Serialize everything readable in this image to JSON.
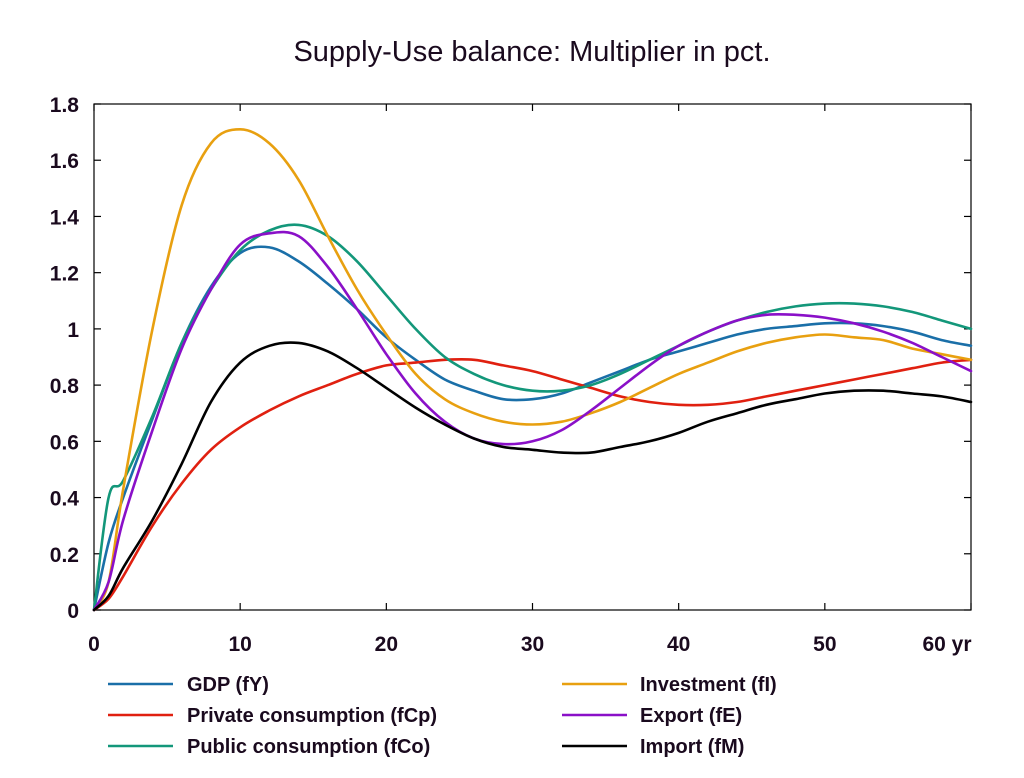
{
  "chart_data": {
    "type": "line",
    "title": "Supply-Use balance: Multiplier in pct.",
    "xlabel": "",
    "ylabel": "",
    "x_unit_label": "yr",
    "xlim": [
      0,
      60
    ],
    "ylim": [
      0,
      1.8
    ],
    "x_ticks": [
      0,
      10,
      20,
      30,
      40,
      50,
      60
    ],
    "x_tick_labels": [
      "0",
      "10",
      "20",
      "30",
      "40",
      "50",
      "60 yr"
    ],
    "y_ticks": [
      0,
      0.2,
      0.4,
      0.6,
      0.8,
      1,
      1.2,
      1.4,
      1.6,
      1.8
    ],
    "y_tick_labels": [
      "0",
      "0.2",
      "0.4",
      "0.6",
      "0.8",
      "1",
      "1.2",
      "1.4",
      "1.6",
      "1.8"
    ],
    "grid": false,
    "legend_position": "bottom",
    "x": [
      0,
      1,
      2,
      4,
      6,
      8,
      10,
      12,
      14,
      16,
      18,
      20,
      22,
      24,
      26,
      28,
      30,
      32,
      34,
      36,
      38,
      40,
      42,
      44,
      46,
      48,
      50,
      52,
      54,
      56,
      58,
      60
    ],
    "series": [
      {
        "name": "GDP (fY)",
        "color": "#1a6fa8",
        "values": [
          0,
          0.24,
          0.4,
          0.68,
          0.95,
          1.15,
          1.27,
          1.29,
          1.24,
          1.16,
          1.07,
          0.97,
          0.89,
          0.82,
          0.78,
          0.75,
          0.75,
          0.77,
          0.81,
          0.85,
          0.89,
          0.92,
          0.95,
          0.98,
          1.0,
          1.01,
          1.02,
          1.02,
          1.01,
          0.99,
          0.96,
          0.94
        ]
      },
      {
        "name": "Private consumption (fCp)",
        "color": "#e02010",
        "values": [
          0,
          0.04,
          0.12,
          0.3,
          0.45,
          0.57,
          0.65,
          0.71,
          0.76,
          0.8,
          0.84,
          0.87,
          0.88,
          0.89,
          0.89,
          0.87,
          0.85,
          0.82,
          0.79,
          0.76,
          0.74,
          0.73,
          0.73,
          0.74,
          0.76,
          0.78,
          0.8,
          0.82,
          0.84,
          0.86,
          0.88,
          0.89
        ]
      },
      {
        "name": "Public consumption (fCo)",
        "color": "#13977a",
        "values": [
          0,
          0.4,
          0.46,
          0.69,
          0.95,
          1.14,
          1.28,
          1.35,
          1.37,
          1.33,
          1.24,
          1.12,
          1.0,
          0.9,
          0.84,
          0.8,
          0.78,
          0.78,
          0.8,
          0.84,
          0.89,
          0.94,
          0.99,
          1.03,
          1.06,
          1.08,
          1.09,
          1.09,
          1.08,
          1.06,
          1.03,
          1.0
        ]
      },
      {
        "name": "Investment (fI)",
        "color": "#e8a010",
        "values": [
          0,
          0.1,
          0.43,
          1.0,
          1.44,
          1.66,
          1.71,
          1.66,
          1.53,
          1.33,
          1.14,
          0.98,
          0.84,
          0.75,
          0.7,
          0.67,
          0.66,
          0.67,
          0.7,
          0.74,
          0.79,
          0.84,
          0.88,
          0.92,
          0.95,
          0.97,
          0.98,
          0.97,
          0.96,
          0.93,
          0.91,
          0.89
        ]
      },
      {
        "name": "Export (fE)",
        "color": "#8a10c8",
        "values": [
          0,
          0.1,
          0.32,
          0.64,
          0.93,
          1.14,
          1.3,
          1.34,
          1.33,
          1.22,
          1.07,
          0.91,
          0.77,
          0.67,
          0.61,
          0.59,
          0.6,
          0.64,
          0.71,
          0.79,
          0.87,
          0.94,
          0.99,
          1.03,
          1.05,
          1.05,
          1.04,
          1.02,
          0.99,
          0.95,
          0.9,
          0.85
        ]
      },
      {
        "name": "Import (fM)",
        "color": "#000000",
        "values": [
          0,
          0.05,
          0.15,
          0.32,
          0.52,
          0.74,
          0.88,
          0.94,
          0.95,
          0.92,
          0.86,
          0.79,
          0.72,
          0.66,
          0.61,
          0.58,
          0.57,
          0.56,
          0.56,
          0.58,
          0.6,
          0.63,
          0.67,
          0.7,
          0.73,
          0.75,
          0.77,
          0.78,
          0.78,
          0.77,
          0.76,
          0.74
        ]
      }
    ]
  }
}
